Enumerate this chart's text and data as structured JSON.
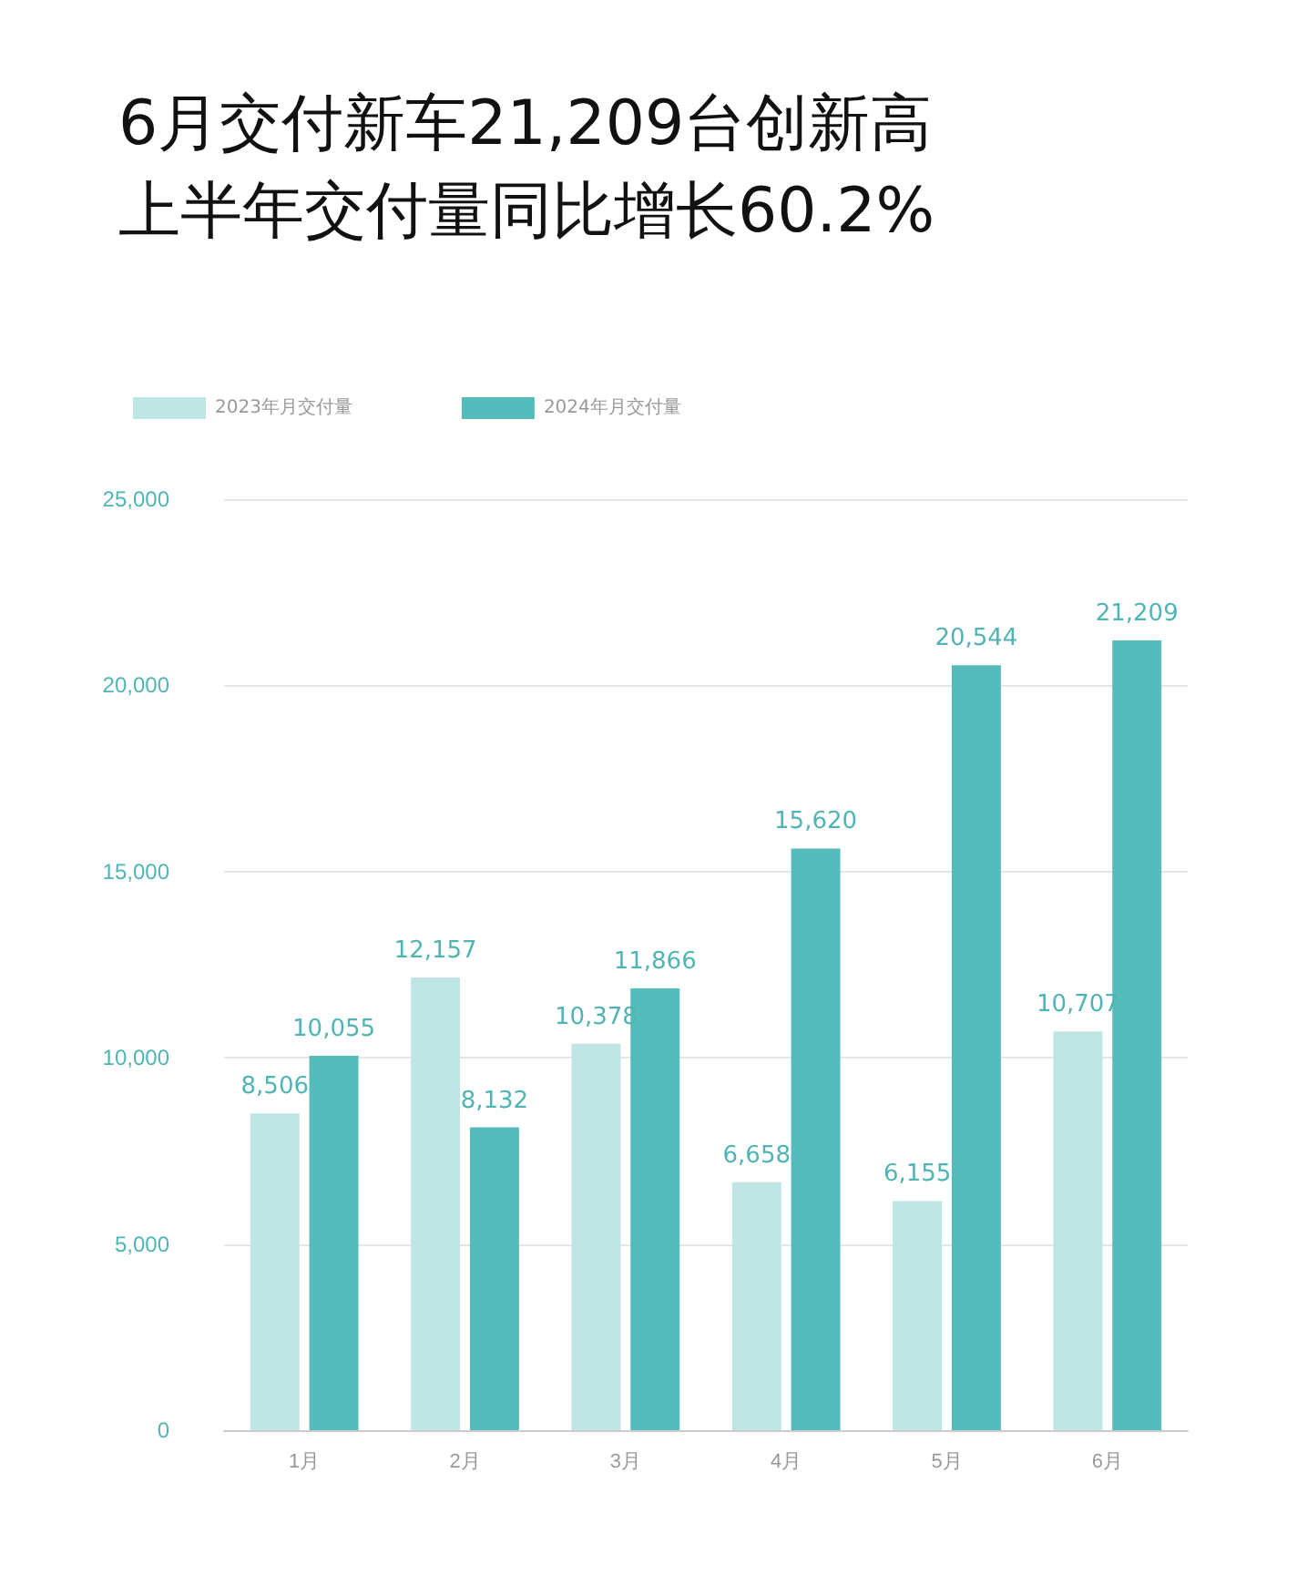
{
  "chart_data": {
    "type": "bar",
    "title": "6月交付新车21,209台创新高",
    "subtitle": "上半年交付量同比增长60.2%",
    "categories": [
      "1月",
      "2月",
      "3月",
      "4月",
      "5月",
      "6月"
    ],
    "series": [
      {
        "name": "2023年月交付量",
        "color": "#bfe6e5",
        "values": [
          8506,
          12157,
          10378,
          6658,
          6155,
          10707
        ],
        "value_labels": [
          "8,506",
          "12,157",
          "10,378",
          "6,658",
          "6,155",
          "10,707"
        ]
      },
      {
        "name": "2024年月交付量",
        "color": "#56bcbb",
        "values": [
          10055,
          8132,
          11866,
          15620,
          20544,
          21209
        ],
        "value_labels": [
          "10,055",
          "8,132",
          "11,866",
          "15,620",
          "20,544",
          "21,209"
        ]
      }
    ],
    "ylim": [
      0,
      25000
    ],
    "yticks": [
      0,
      {
        "value": 5000,
        "label": "5,000"
      },
      {
        "value": 10000,
        "label": "10,000"
      },
      {
        "value": 15000,
        "label": "15,000"
      },
      {
        "value": 20000,
        "label": "20,000"
      },
      {
        "value": 25000,
        "label": "25,000"
      }
    ],
    "grid": "y",
    "legend": "top left"
  }
}
